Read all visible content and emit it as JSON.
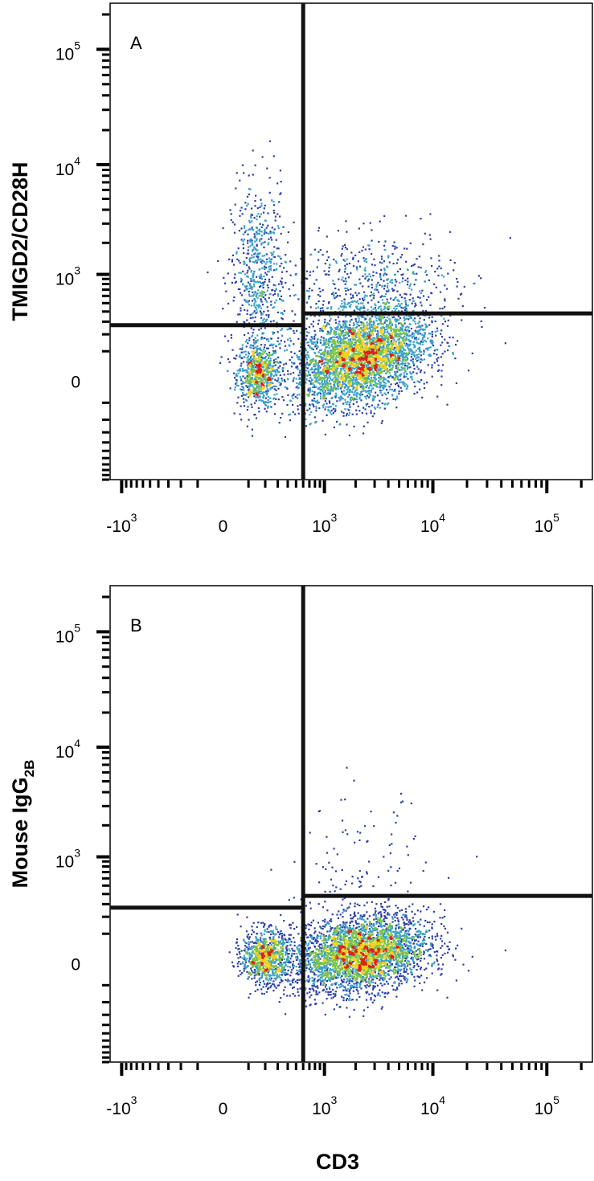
{
  "figure": {
    "x_axis_title": "CD3",
    "panels": [
      {
        "letter": "A",
        "ylabel": "TMIGD2/CD28H",
        "ylabel_parts": [
          {
            "text": "TMIGD2/CD28H",
            "sub": false
          }
        ]
      },
      {
        "letter": "B",
        "ylabel": "Mouse IgG2B",
        "ylabel_parts": [
          {
            "text": "Mouse IgG",
            "sub": false
          },
          {
            "text": "2B",
            "sub": true
          }
        ]
      }
    ],
    "x_ticks": [
      {
        "base": "-10",
        "exp": "3"
      },
      {
        "base": "0",
        "exp": ""
      },
      {
        "base": "10",
        "exp": "3"
      },
      {
        "base": "10",
        "exp": "4"
      },
      {
        "base": "10",
        "exp": "5"
      }
    ],
    "y_ticks": [
      {
        "base": "10",
        "exp": "5"
      },
      {
        "base": "10",
        "exp": "4"
      },
      {
        "base": "10",
        "exp": "3"
      },
      {
        "base": "0",
        "exp": ""
      }
    ]
  },
  "colors": {
    "density_low": "#2b3fa8",
    "density_mid_low": "#3aa0c8",
    "density_mid": "#7cc24a",
    "density_mid_high": "#f0d020",
    "density_high": "#e02010",
    "gate_lines": "#111111"
  },
  "chart_data": [
    {
      "type": "scatter",
      "subtype": "flow-cytometry-density-plot",
      "panel": "A",
      "xlabel": "CD3",
      "ylabel": "TMIGD2/CD28H",
      "x_scale": "biexponential",
      "y_scale": "biexponential",
      "x_ticks": [
        "-10^3",
        "0",
        "10^3",
        "10^4",
        "10^5"
      ],
      "y_ticks": [
        "0",
        "10^3",
        "10^4",
        "10^5"
      ],
      "quadrant_gates": {
        "x_cd3": 600,
        "y_left": 270,
        "y_right": 380
      },
      "populations": [
        {
          "name": "",
          "center": {
            "x": 150,
            "y": 10
          },
          "spread": "medium",
          "events": 700,
          "peak_color": "mid"
        },
        {
          "name": "",
          "center": {
            "x": 150,
            "y": 900
          },
          "spread": "wide-vertical",
          "events": 650,
          "peak_color": "low"
        },
        {
          "name": "",
          "center": {
            "x": 2200,
            "y": 70
          },
          "spread": "large",
          "events": 3600,
          "peak_color": "high"
        },
        {
          "name": "",
          "center": {
            "x": 2500,
            "y": 700
          },
          "spread": "wide",
          "events": 600,
          "peak_color": "low"
        }
      ]
    },
    {
      "type": "scatter",
      "subtype": "flow-cytometry-density-plot",
      "panel": "B",
      "xlabel": "CD3",
      "ylabel": "Mouse IgG2B",
      "x_scale": "biexponential",
      "y_scale": "biexponential",
      "x_ticks": [
        "-10^3",
        "0",
        "10^3",
        "10^4",
        "10^5"
      ],
      "y_ticks": [
        "0",
        "10^3",
        "10^4",
        "10^5"
      ],
      "quadrant_gates": {
        "x_cd3": 600,
        "y_left": 270,
        "y_right": 380
      },
      "populations": [
        {
          "name": "",
          "center": {
            "x": 200,
            "y": 10
          },
          "spread": "medium",
          "events": 900,
          "peak_color": "mid-high"
        },
        {
          "name": "",
          "center": {
            "x": 2200,
            "y": 20
          },
          "spread": "large",
          "events": 3400,
          "peak_color": "high"
        },
        {
          "name": "",
          "center": {
            "x": 2000,
            "y": 500
          },
          "spread": "sparse",
          "events": 150,
          "peak_color": "low"
        }
      ]
    }
  ]
}
